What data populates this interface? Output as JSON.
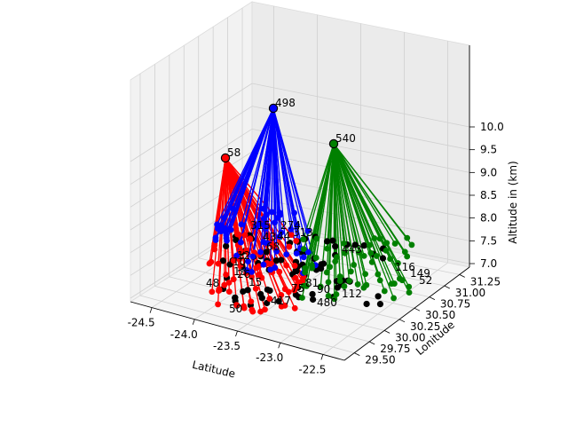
{
  "chart_data": {
    "type": "scatter3d",
    "xlabel": "Latitude",
    "ylabel": "Lonitude",
    "zlabel": "Altitude in (km)",
    "x_ticks": [
      "-24.5",
      "-24.0",
      "-23.5",
      "-23.0",
      "-22.5"
    ],
    "y_ticks": [
      "29.50",
      "29.75",
      "30.00",
      "30.25",
      "30.50",
      "30.75",
      "31.00",
      "31.25"
    ],
    "z_ticks": [
      "7.0",
      "7.5",
      "8.0",
      "8.5",
      "9.0",
      "9.5",
      "10.0"
    ],
    "grid": true,
    "edge_color": "#000000",
    "ground_color": "#000000",
    "hubs": [
      {
        "id": "58",
        "color": "#ff0000"
      },
      {
        "id": "498",
        "color": "#0000ff"
      },
      {
        "id": "540",
        "color": "#008000"
      }
    ],
    "point_labels": [
      "48",
      "50",
      "417",
      "480",
      "112",
      "116",
      "149",
      "52",
      "274",
      "313",
      "315",
      "443",
      "13",
      "43",
      "44",
      "68",
      "10",
      "12",
      "26",
      "15",
      "75",
      "81",
      "90"
    ]
  }
}
